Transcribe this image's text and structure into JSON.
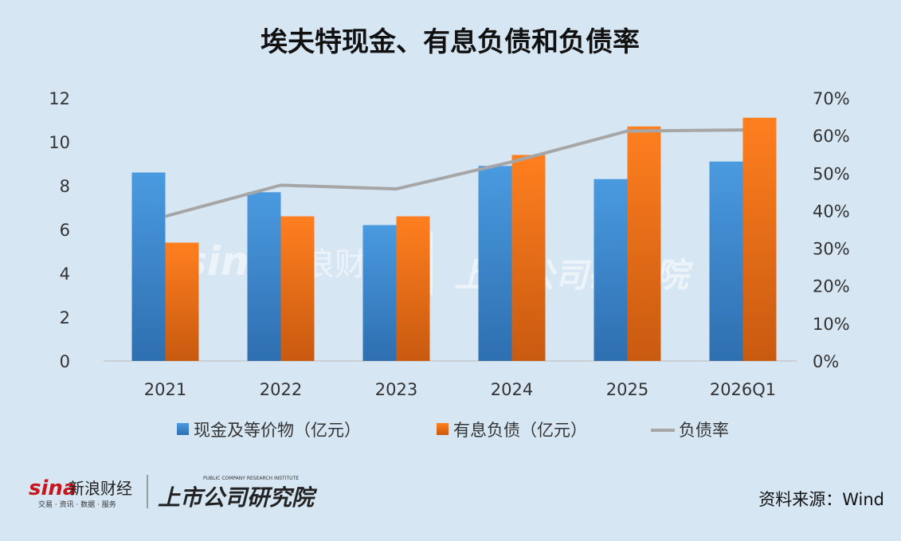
{
  "chart_data": {
    "type": "bar",
    "title": "埃夫特现金、有息负债和负债率",
    "categories": [
      "2021",
      "2022",
      "2023",
      "2024",
      "2025",
      "2026Q1"
    ],
    "series": [
      {
        "name": "现金及等价物（亿元）",
        "type": "bar",
        "axis": "left",
        "color": "#3f8fd6",
        "values": [
          8.6,
          7.7,
          6.2,
          8.9,
          8.3,
          9.1
        ]
      },
      {
        "name": "有息负债（亿元）",
        "type": "bar",
        "axis": "left",
        "color": "#f07a1a",
        "values": [
          5.4,
          6.6,
          6.6,
          9.4,
          10.7,
          11.1
        ]
      },
      {
        "name": "负债率",
        "type": "line",
        "axis": "right",
        "color": "#a6a6a6",
        "values": [
          38.5,
          46.8,
          45.8,
          53.0,
          61.2,
          61.5
        ]
      }
    ],
    "yleft": {
      "ylim": [
        0,
        12
      ],
      "ticks": [
        "0",
        "2",
        "4",
        "6",
        "8",
        "10",
        "12"
      ]
    },
    "yright": {
      "ylim": [
        0,
        70
      ],
      "ticks": [
        "0%",
        "10%",
        "20%",
        "30%",
        "40%",
        "50%",
        "60%",
        "70%"
      ]
    },
    "legend": "bottom",
    "grid": false
  },
  "footer": {
    "source": "资料来源：Wind",
    "logo_sina": "sina",
    "logo_sina_cn": "新浪财经",
    "logo_sina_sub": "交易 · 资讯 · 数据 · 服务",
    "logo_institute": "上市公司研究院",
    "logo_institute_en": "PUBLIC COMPANY RESEARCH INSTITUTE"
  }
}
